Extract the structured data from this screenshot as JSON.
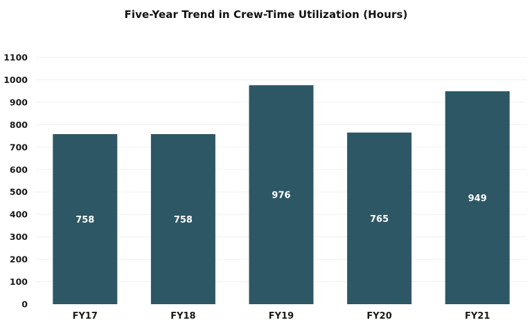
{
  "chart_data": {
    "type": "bar",
    "title": "Five-Year Trend in Crew-Time Utilization (Hours)",
    "categories": [
      "FY17",
      "FY18",
      "FY19",
      "FY20",
      "FY21"
    ],
    "values": [
      758,
      758,
      976,
      765,
      949
    ],
    "data_labels": [
      "758",
      "758",
      "976",
      "765",
      "949"
    ],
    "y_ticks": [
      "0",
      "100",
      "200",
      "300",
      "400",
      "500",
      "600",
      "700",
      "800",
      "900",
      "1000",
      "1100"
    ],
    "ylim": [
      0,
      1100
    ],
    "grid": true,
    "legend": "none",
    "bar_color": "#2d5765",
    "label_color": "#ffffff"
  }
}
